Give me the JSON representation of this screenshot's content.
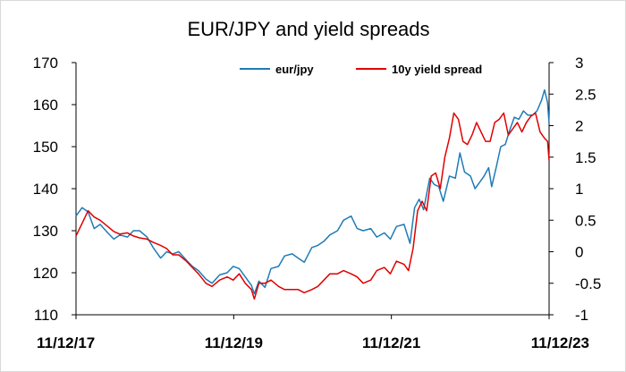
{
  "chart_data": {
    "type": "line",
    "title": "EUR/JPY and yield spreads",
    "xlabel": "",
    "ylabel": "",
    "y2label": "",
    "x_ticks": [
      "11/12/17",
      "11/12/19",
      "11/12/21",
      "11/12/23"
    ],
    "x_range": [
      "2017-12-11",
      "2023-12-11"
    ],
    "ylim": [
      110,
      170
    ],
    "y_ticks": [
      110,
      120,
      130,
      140,
      150,
      160,
      170
    ],
    "y2lim": [
      -1,
      3
    ],
    "y2_ticks": [
      "-1",
      "-0.5",
      "0",
      "0.5",
      "1",
      "1.5",
      "2",
      "2.5",
      "3"
    ],
    "grid": false,
    "legend_position": "top",
    "series": [
      {
        "name": "eur/jpy",
        "axis": "left",
        "color": "#1f7bb6",
        "points": [
          [
            "2017-12-11",
            133.5
          ],
          [
            "2018-01-08",
            135.5
          ],
          [
            "2018-02-05",
            134.5
          ],
          [
            "2018-03-05",
            130.5
          ],
          [
            "2018-04-02",
            131.5
          ],
          [
            "2018-05-07",
            129.5
          ],
          [
            "2018-06-04",
            128.0
          ],
          [
            "2018-07-02",
            129.0
          ],
          [
            "2018-08-06",
            128.5
          ],
          [
            "2018-09-03",
            130.0
          ],
          [
            "2018-10-01",
            130.0
          ],
          [
            "2018-11-05",
            128.5
          ],
          [
            "2018-12-03",
            126.0
          ],
          [
            "2019-01-07",
            123.5
          ],
          [
            "2019-02-04",
            125.0
          ],
          [
            "2019-03-04",
            124.5
          ],
          [
            "2019-04-01",
            125.0
          ],
          [
            "2019-05-06",
            123.0
          ],
          [
            "2019-06-03",
            121.5
          ],
          [
            "2019-07-01",
            120.5
          ],
          [
            "2019-08-05",
            118.5
          ],
          [
            "2019-09-02",
            117.5
          ],
          [
            "2019-10-07",
            119.5
          ],
          [
            "2019-11-11",
            120.0
          ],
          [
            "2019-12-09",
            121.5
          ],
          [
            "2020-01-06",
            121.0
          ],
          [
            "2020-02-03",
            119.0
          ],
          [
            "2020-03-02",
            117.0
          ],
          [
            "2020-03-16",
            115.0
          ],
          [
            "2020-04-06",
            118.0
          ],
          [
            "2020-05-04",
            116.5
          ],
          [
            "2020-06-01",
            121.0
          ],
          [
            "2020-07-06",
            121.5
          ],
          [
            "2020-08-03",
            124.0
          ],
          [
            "2020-09-07",
            124.5
          ],
          [
            "2020-10-05",
            123.5
          ],
          [
            "2020-11-02",
            122.5
          ],
          [
            "2020-12-07",
            126.0
          ],
          [
            "2021-01-04",
            126.5
          ],
          [
            "2021-02-01",
            127.5
          ],
          [
            "2021-03-01",
            129.0
          ],
          [
            "2021-04-05",
            130.0
          ],
          [
            "2021-05-03",
            132.5
          ],
          [
            "2021-06-07",
            133.5
          ],
          [
            "2021-07-05",
            130.5
          ],
          [
            "2021-08-02",
            130.0
          ],
          [
            "2021-09-06",
            130.5
          ],
          [
            "2021-10-04",
            128.5
          ],
          [
            "2021-11-08",
            129.5
          ],
          [
            "2021-12-06",
            128.0
          ],
          [
            "2022-01-03",
            131.0
          ],
          [
            "2022-02-07",
            131.5
          ],
          [
            "2022-03-07",
            127.0
          ],
          [
            "2022-03-28",
            135.5
          ],
          [
            "2022-04-18",
            137.5
          ],
          [
            "2022-05-09",
            135.0
          ],
          [
            "2022-06-06",
            142.5
          ],
          [
            "2022-06-27",
            141.0
          ],
          [
            "2022-07-18",
            140.5
          ],
          [
            "2022-08-08",
            137.0
          ],
          [
            "2022-09-05",
            143.0
          ],
          [
            "2022-10-03",
            142.5
          ],
          [
            "2022-10-24",
            148.5
          ],
          [
            "2022-11-14",
            144.0
          ],
          [
            "2022-12-12",
            143.0
          ],
          [
            "2023-01-02",
            140.0
          ],
          [
            "2023-01-23",
            141.5
          ],
          [
            "2023-02-13",
            143.0
          ],
          [
            "2023-03-06",
            145.0
          ],
          [
            "2023-03-20",
            140.5
          ],
          [
            "2023-04-10",
            145.0
          ],
          [
            "2023-05-01",
            150.0
          ],
          [
            "2023-05-22",
            150.5
          ],
          [
            "2023-06-12",
            154.0
          ],
          [
            "2023-07-03",
            157.0
          ],
          [
            "2023-07-24",
            156.5
          ],
          [
            "2023-08-14",
            158.5
          ],
          [
            "2023-09-04",
            157.5
          ],
          [
            "2023-09-25",
            157.5
          ],
          [
            "2023-10-16",
            158.5
          ],
          [
            "2023-11-06",
            161.0
          ],
          [
            "2023-11-20",
            163.5
          ],
          [
            "2023-12-04",
            160.5
          ],
          [
            "2023-12-11",
            155.5
          ]
        ]
      },
      {
        "name": "10y yield spread",
        "axis": "right",
        "color": "#e00000",
        "points": [
          [
            "2017-12-11",
            0.25
          ],
          [
            "2018-01-08",
            0.45
          ],
          [
            "2018-02-05",
            0.65
          ],
          [
            "2018-03-05",
            0.55
          ],
          [
            "2018-04-02",
            0.5
          ],
          [
            "2018-05-07",
            0.4
          ],
          [
            "2018-06-04",
            0.32
          ],
          [
            "2018-07-02",
            0.28
          ],
          [
            "2018-08-06",
            0.3
          ],
          [
            "2018-09-03",
            0.25
          ],
          [
            "2018-10-01",
            0.22
          ],
          [
            "2018-11-05",
            0.2
          ],
          [
            "2018-12-03",
            0.15
          ],
          [
            "2019-01-07",
            0.1
          ],
          [
            "2019-02-04",
            0.05
          ],
          [
            "2019-03-04",
            -0.05
          ],
          [
            "2019-04-01",
            -0.05
          ],
          [
            "2019-05-06",
            -0.15
          ],
          [
            "2019-06-03",
            -0.25
          ],
          [
            "2019-07-01",
            -0.35
          ],
          [
            "2019-08-05",
            -0.5
          ],
          [
            "2019-09-02",
            -0.55
          ],
          [
            "2019-10-07",
            -0.45
          ],
          [
            "2019-11-11",
            -0.4
          ],
          [
            "2019-12-09",
            -0.45
          ],
          [
            "2020-01-06",
            -0.35
          ],
          [
            "2020-02-03",
            -0.5
          ],
          [
            "2020-03-02",
            -0.6
          ],
          [
            "2020-03-16",
            -0.75
          ],
          [
            "2020-04-06",
            -0.5
          ],
          [
            "2020-05-04",
            -0.5
          ],
          [
            "2020-06-01",
            -0.45
          ],
          [
            "2020-07-06",
            -0.55
          ],
          [
            "2020-08-03",
            -0.6
          ],
          [
            "2020-09-07",
            -0.6
          ],
          [
            "2020-10-05",
            -0.6
          ],
          [
            "2020-11-02",
            -0.65
          ],
          [
            "2020-12-07",
            -0.6
          ],
          [
            "2021-01-04",
            -0.55
          ],
          [
            "2021-02-01",
            -0.45
          ],
          [
            "2021-03-01",
            -0.35
          ],
          [
            "2021-04-05",
            -0.35
          ],
          [
            "2021-05-03",
            -0.3
          ],
          [
            "2021-06-07",
            -0.35
          ],
          [
            "2021-07-05",
            -0.4
          ],
          [
            "2021-08-02",
            -0.5
          ],
          [
            "2021-09-06",
            -0.45
          ],
          [
            "2021-10-04",
            -0.3
          ],
          [
            "2021-11-08",
            -0.25
          ],
          [
            "2021-12-06",
            -0.35
          ],
          [
            "2022-01-03",
            -0.15
          ],
          [
            "2022-02-07",
            -0.2
          ],
          [
            "2022-02-28",
            -0.3
          ],
          [
            "2022-03-21",
            0.05
          ],
          [
            "2022-04-11",
            0.65
          ],
          [
            "2022-05-02",
            0.8
          ],
          [
            "2022-05-23",
            0.65
          ],
          [
            "2022-06-13",
            1.2
          ],
          [
            "2022-07-04",
            1.25
          ],
          [
            "2022-07-25",
            1.0
          ],
          [
            "2022-08-15",
            1.5
          ],
          [
            "2022-09-05",
            1.8
          ],
          [
            "2022-09-26",
            2.2
          ],
          [
            "2022-10-17",
            2.1
          ],
          [
            "2022-11-07",
            1.75
          ],
          [
            "2022-11-28",
            1.7
          ],
          [
            "2022-12-19",
            1.85
          ],
          [
            "2023-01-09",
            2.05
          ],
          [
            "2023-01-30",
            1.9
          ],
          [
            "2023-02-20",
            1.75
          ],
          [
            "2023-03-13",
            1.75
          ],
          [
            "2023-04-03",
            2.05
          ],
          [
            "2023-04-24",
            2.1
          ],
          [
            "2023-05-15",
            2.2
          ],
          [
            "2023-06-05",
            1.85
          ],
          [
            "2023-06-26",
            1.95
          ],
          [
            "2023-07-17",
            2.05
          ],
          [
            "2023-08-07",
            1.9
          ],
          [
            "2023-08-28",
            2.05
          ],
          [
            "2023-09-18",
            2.15
          ],
          [
            "2023-10-09",
            2.2
          ],
          [
            "2023-10-30",
            1.9
          ],
          [
            "2023-11-20",
            1.8
          ],
          [
            "2023-12-04",
            1.75
          ],
          [
            "2023-12-11",
            1.45
          ]
        ]
      }
    ]
  }
}
